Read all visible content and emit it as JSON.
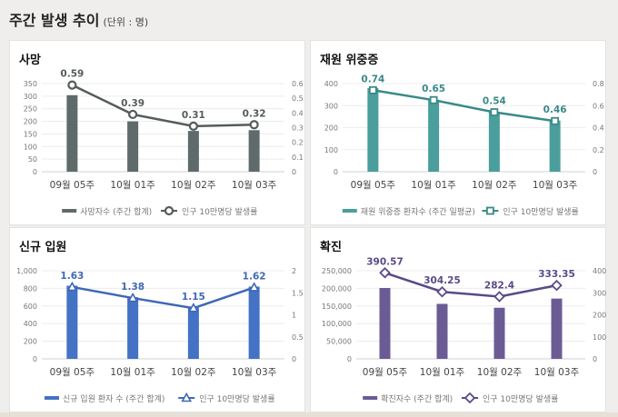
{
  "header": {
    "title": "주간 발생 추이",
    "unit": "(단위 : 명)"
  },
  "chart_data": [
    {
      "type": "bar+line",
      "title": "사망",
      "categories": [
        "09월 05주",
        "10월 01주",
        "10월 02주",
        "10월 03주"
      ],
      "bar": {
        "name": "사망자수 (주간 합계)",
        "values": [
          304,
          200,
          162,
          165
        ],
        "color": "#5f6b6b"
      },
      "line": {
        "name": "인구 10만명당 발생률",
        "values": [
          0.59,
          0.39,
          0.31,
          0.32
        ],
        "labels": [
          "0.59",
          "0.39",
          "0.31",
          "0.32"
        ],
        "color": "#555b5b",
        "marker": "circle"
      },
      "yleft": {
        "ticks": [
          0,
          50,
          100,
          150,
          200,
          250,
          300,
          350
        ],
        "tick_labels": [
          "0",
          "50",
          "100",
          "150",
          "200",
          "250",
          "300",
          "350"
        ],
        "max": 350
      },
      "yright": {
        "ticks": [
          0,
          0.1,
          0.2,
          0.3,
          0.4,
          0.5,
          0.6
        ],
        "tick_labels": [
          "0",
          "0.1",
          "0.2",
          "0.3",
          "0.4",
          "0.5",
          "0.6"
        ],
        "max": 0.6
      },
      "grid": true,
      "legend": "bottom"
    },
    {
      "type": "bar+line",
      "title": "재원 위중증",
      "categories": [
        "09월 05주",
        "10월 01주",
        "10월 02주",
        "10월 03주"
      ],
      "bar": {
        "name": "재원 위중증 환자수 (주간 일평균)",
        "values": [
          380,
          327,
          272,
          232
        ],
        "color": "#4a9e9b"
      },
      "line": {
        "name": "인구 10만명당 발생률",
        "values": [
          0.74,
          0.65,
          0.54,
          0.46
        ],
        "labels": [
          "0.74",
          "0.65",
          "0.54",
          "0.46"
        ],
        "color": "#3a8a88",
        "marker": "square"
      },
      "yleft": {
        "ticks": [
          0,
          100,
          200,
          300,
          400
        ],
        "tick_labels": [
          "0",
          "100",
          "200",
          "300",
          "400"
        ],
        "max": 400
      },
      "yright": {
        "ticks": [
          0,
          0.2,
          0.4,
          0.6,
          0.8
        ],
        "tick_labels": [
          "0",
          "0.2",
          "0.4",
          "0.6",
          "0.8"
        ],
        "max": 0.8
      },
      "grid": true,
      "legend": "bottom"
    },
    {
      "type": "bar+line",
      "title": "신규 입원",
      "categories": [
        "09월 05주",
        "10월 01주",
        "10월 02주",
        "10월 03주"
      ],
      "bar": {
        "name": "신규 입원 환자 수 (주간 합계)",
        "values": [
          830,
          700,
          580,
          820
        ],
        "color": "#4472c4"
      },
      "line": {
        "name": "인구 10만명당 발생률",
        "values": [
          1.63,
          1.38,
          1.15,
          1.62
        ],
        "labels": [
          "1.63",
          "1.38",
          "1.15",
          "1.62"
        ],
        "color": "#3f68b5",
        "marker": "triangle"
      },
      "yleft": {
        "ticks": [
          0,
          200,
          400,
          600,
          800,
          1000
        ],
        "tick_labels": [
          "0",
          "200",
          "400",
          "600",
          "800",
          "1,000"
        ],
        "max": 1000
      },
      "yright": {
        "ticks": [
          0,
          0.5,
          1,
          1.5,
          2
        ],
        "tick_labels": [
          "0",
          "0.5",
          "1",
          "1.5",
          "2"
        ],
        "max": 2
      },
      "grid": true,
      "legend": "bottom"
    },
    {
      "type": "bar+line",
      "title": "확진",
      "categories": [
        "09월 05주",
        "10월 01주",
        "10월 02주",
        "10월 03주"
      ],
      "bar": {
        "name": "확진자수 (주간 합계)",
        "values": [
          201000,
          156000,
          145000,
          171000
        ],
        "color": "#6b5b95"
      },
      "line": {
        "name": "인구 10만명당 발생률",
        "values": [
          390.57,
          304.25,
          282.4,
          333.35
        ],
        "labels": [
          "390.57",
          "304.25",
          "282.4",
          "333.35"
        ],
        "color": "#5a4a87",
        "marker": "diamond"
      },
      "yleft": {
        "ticks": [
          0,
          50000,
          100000,
          150000,
          200000,
          250000
        ],
        "tick_labels": [
          "0",
          "50,000",
          "100,000",
          "150,000",
          "200,000",
          "250,000"
        ],
        "max": 250000
      },
      "yright": {
        "ticks": [
          0,
          100,
          200,
          300,
          400
        ],
        "tick_labels": [
          "0",
          "100",
          "200",
          "300",
          "400"
        ],
        "max": 400
      },
      "grid": true,
      "legend": "bottom"
    }
  ]
}
